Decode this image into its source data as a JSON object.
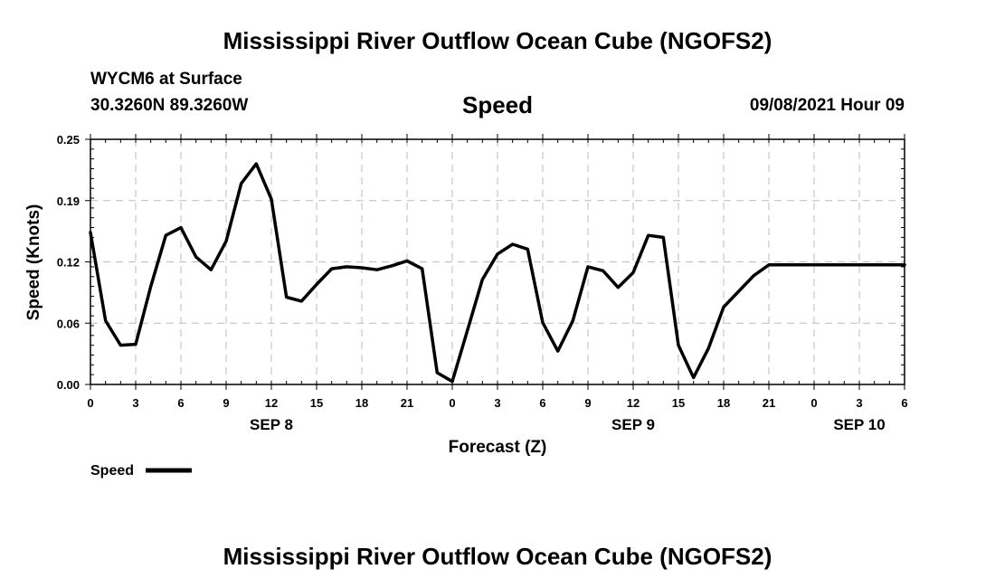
{
  "header": {
    "title": "Mississippi River Outflow Ocean Cube (NGOFS2)",
    "station": "WYCM6 at Surface",
    "coords": "30.3260N  89.3260W",
    "variable": "Speed",
    "timestamp": "09/08/2021 Hour 09"
  },
  "footer": {
    "title": "Mississippi River Outflow Ocean Cube (NGOFS2)"
  },
  "chart_data": {
    "type": "line",
    "title": "Speed",
    "xlabel": "Forecast (Z)",
    "ylabel": "Speed (Knots)",
    "ylim": [
      0,
      0.25
    ],
    "yticks": [
      "0.00",
      "0.06",
      "0.12",
      "0.19",
      "0.25"
    ],
    "ytick_values": [
      0,
      0.0625,
      0.125,
      0.1875,
      0.25
    ],
    "xlim_hours": [
      0,
      54
    ],
    "xtick_labels": [
      "0",
      "3",
      "6",
      "9",
      "12",
      "15",
      "18",
      "21",
      "0",
      "3",
      "6",
      "9",
      "12",
      "15",
      "18",
      "21",
      "0",
      "3",
      "6"
    ],
    "date_labels": [
      {
        "label": "SEP 8",
        "hour": 12
      },
      {
        "label": "SEP 9",
        "hour": 36
      },
      {
        "label": "SEP 10",
        "hour": 51
      }
    ],
    "grid": true,
    "legend": "bottom-left",
    "series": [
      {
        "name": "Speed",
        "color": "#000000",
        "x": [
          0,
          1,
          2,
          3,
          4,
          5,
          6,
          7,
          8,
          9,
          10,
          11,
          12,
          13,
          14,
          15,
          16,
          17,
          18,
          19,
          20,
          21,
          22,
          23,
          24,
          25,
          26,
          27,
          28,
          29,
          30,
          31,
          32,
          33,
          34,
          35,
          36,
          37,
          38,
          39,
          40,
          41,
          42,
          43,
          44,
          45,
          46,
          47,
          48,
          49,
          50,
          51,
          52,
          53,
          54
        ],
        "y": [
          0.155,
          0.065,
          0.04,
          0.041,
          0.1,
          0.152,
          0.16,
          0.13,
          0.117,
          0.146,
          0.205,
          0.225,
          0.189,
          0.089,
          0.085,
          0.102,
          0.118,
          0.12,
          0.119,
          0.117,
          0.121,
          0.126,
          0.118,
          0.012,
          0.003,
          0.055,
          0.107,
          0.133,
          0.143,
          0.138,
          0.063,
          0.034,
          0.065,
          0.12,
          0.116,
          0.099,
          0.114,
          0.152,
          0.15,
          0.04,
          0.007,
          0.037,
          0.079,
          0.095,
          0.111,
          0.122,
          0.122,
          0.122,
          0.122,
          0.122,
          0.122,
          0.122,
          0.122,
          0.122,
          0.122
        ]
      }
    ]
  },
  "legend": {
    "label": "Speed"
  }
}
